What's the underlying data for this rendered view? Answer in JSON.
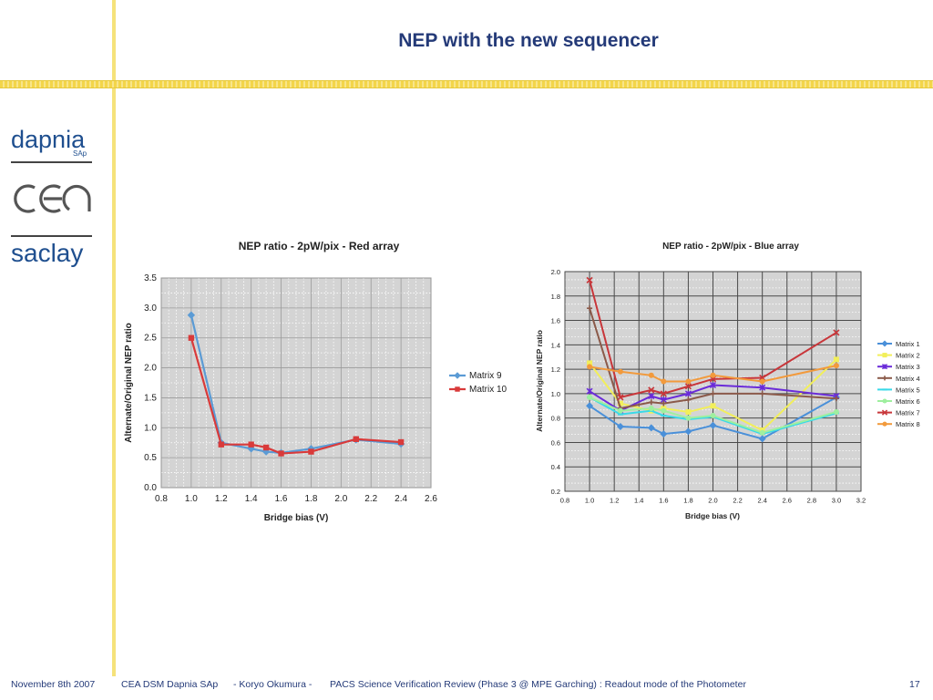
{
  "slide": {
    "title": "NEP with the new sequencer",
    "logos": {
      "dapnia": "dapnia",
      "sap": "SAp",
      "cea": "cea",
      "saclay": "saclay"
    },
    "footer": {
      "date": "November 8th 2007",
      "org": "CEA DSM Dapnia SAp",
      "author": "- Koryo Okumura -",
      "event": "PACS Science Verification Review (Phase 3 @ MPE Garching) : Readout mode of the Photometer",
      "page": "17"
    },
    "colors": {
      "accent_yellow": "#f3d54a",
      "title_blue": "#243a78",
      "logo_blue": "#1f4f8f"
    }
  },
  "chart_data": [
    {
      "type": "line",
      "title": "NEP ratio - 2pW/pix - Red array",
      "xlabel": "Bridge bias (V)",
      "ylabel": "Alternate/Original NEP ratio",
      "xlim": [
        0.8,
        2.6
      ],
      "ylim": [
        0.0,
        3.5
      ],
      "xticks": [
        0.8,
        1.0,
        1.2,
        1.4,
        1.6,
        1.8,
        2.0,
        2.2,
        2.4,
        2.6
      ],
      "yticks": [
        0.0,
        0.5,
        1.0,
        1.5,
        2.0,
        2.5,
        3.0,
        3.5
      ],
      "tick_decimals": 1,
      "grid": true,
      "legend": "right",
      "series": [
        {
          "name": "Matrix 9",
          "color": "#5b9bd5",
          "marker": "diamond",
          "x": [
            1.0,
            1.2,
            1.4,
            1.5,
            1.6,
            1.8,
            2.1,
            2.4
          ],
          "y": [
            2.88,
            0.75,
            0.65,
            0.6,
            0.58,
            0.65,
            0.8,
            0.73
          ]
        },
        {
          "name": "Matrix 10",
          "color": "#d93a3a",
          "marker": "square",
          "x": [
            1.0,
            1.2,
            1.4,
            1.5,
            1.6,
            1.8,
            2.1,
            2.4
          ],
          "y": [
            2.5,
            0.72,
            0.72,
            0.67,
            0.57,
            0.6,
            0.81,
            0.76
          ]
        }
      ]
    },
    {
      "type": "line",
      "title": "NEP ratio - 2pW/pix - Blue array",
      "xlabel": "Bridge bias (V)",
      "ylabel": "Alternate/Original NEP ratio",
      "xlim": [
        0.8,
        3.2
      ],
      "ylim": [
        0.2,
        2.0
      ],
      "xticks": [
        0.8,
        1.0,
        1.2,
        1.4,
        1.6,
        1.8,
        2.0,
        2.2,
        2.4,
        2.6,
        2.8,
        3.0,
        3.2
      ],
      "yticks": [
        0.2,
        0.4,
        0.6,
        0.8,
        1.0,
        1.2,
        1.4,
        1.6,
        1.8,
        2.0
      ],
      "tick_decimals": 1,
      "grid": true,
      "legend": "right",
      "series": [
        {
          "name": "Matrix 1",
          "color": "#4a90d9",
          "marker": "diamond",
          "x": [
            1.0,
            1.25,
            1.5,
            1.6,
            1.8,
            2.0,
            2.4,
            3.0
          ],
          "y": [
            0.9,
            0.73,
            0.72,
            0.67,
            0.69,
            0.74,
            0.63,
            0.97
          ]
        },
        {
          "name": "Matrix 2",
          "color": "#f2ef5a",
          "marker": "square",
          "x": [
            1.0,
            1.25,
            1.5,
            1.6,
            1.8,
            2.0,
            2.4,
            3.0
          ],
          "y": [
            1.25,
            0.92,
            0.86,
            0.88,
            0.85,
            0.9,
            0.7,
            1.28
          ]
        },
        {
          "name": "Matrix 3",
          "color": "#6a2bd9",
          "marker": "star",
          "x": [
            1.0,
            1.25,
            1.5,
            1.6,
            1.8,
            2.0,
            2.4,
            3.0
          ],
          "y": [
            1.02,
            0.86,
            0.98,
            0.95,
            1.0,
            1.07,
            1.05,
            0.98
          ]
        },
        {
          "name": "Matrix 4",
          "color": "#8b5a4a",
          "marker": "plus",
          "x": [
            1.0,
            1.25,
            1.5,
            1.6,
            1.8,
            2.0,
            2.4,
            3.0
          ],
          "y": [
            1.7,
            0.88,
            0.93,
            0.92,
            0.95,
            1.0,
            1.0,
            0.96
          ]
        },
        {
          "name": "Matrix 5",
          "color": "#39d9e8",
          "marker": "dash",
          "x": [
            1.0,
            1.25,
            1.5,
            1.6,
            1.8,
            2.0,
            2.4,
            3.0
          ],
          "y": [
            0.97,
            0.83,
            0.86,
            0.82,
            0.79,
            0.81,
            0.67,
            0.84
          ]
        },
        {
          "name": "Matrix 6",
          "color": "#9fef9f",
          "marker": "circle",
          "x": [
            1.0,
            1.25,
            1.5,
            1.6,
            1.8,
            2.0,
            2.4,
            3.0
          ],
          "y": [
            0.97,
            0.86,
            0.88,
            0.86,
            0.8,
            0.82,
            0.68,
            0.85
          ]
        },
        {
          "name": "Matrix 7",
          "color": "#c8363a",
          "marker": "x",
          "x": [
            1.0,
            1.25,
            1.5,
            1.6,
            1.8,
            2.0,
            2.4,
            3.0
          ],
          "y": [
            1.93,
            0.97,
            1.03,
            1.0,
            1.06,
            1.12,
            1.13,
            1.5
          ]
        },
        {
          "name": "Matrix 8",
          "color": "#f29a3c",
          "marker": "circle",
          "x": [
            1.0,
            1.25,
            1.5,
            1.6,
            1.8,
            2.0,
            2.4,
            3.0
          ],
          "y": [
            1.22,
            1.18,
            1.15,
            1.1,
            1.1,
            1.15,
            1.1,
            1.23
          ]
        }
      ]
    }
  ]
}
